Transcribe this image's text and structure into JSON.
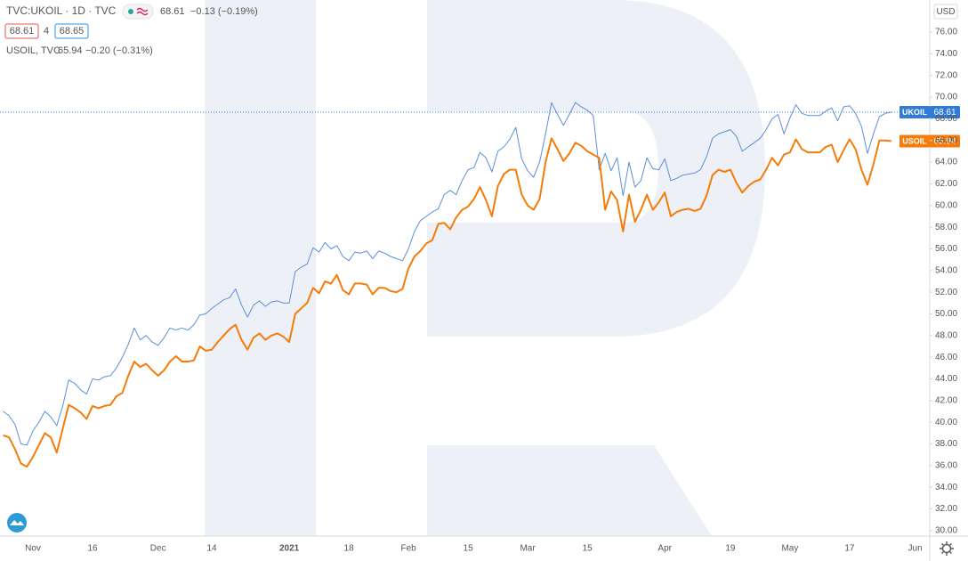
{
  "chart_data": {
    "type": "line",
    "title": "TVC:UKOIL · 1D · TVC",
    "title_change": "−0.13 (−0.19%)",
    "bid": "68.61",
    "spread": "4",
    "ask": "68.65",
    "compare_label": "USOIL, TVC",
    "compare_change": "−0.20 (−0.31%)",
    "currency": "USD",
    "grid": false,
    "categories": [
      null,
      null,
      null,
      null,
      null,
      "Nov",
      null,
      null,
      null,
      null,
      null,
      null,
      null,
      null,
      null,
      "16",
      null,
      null,
      null,
      null,
      null,
      null,
      null,
      null,
      null,
      null,
      "Dec",
      null,
      null,
      null,
      null,
      null,
      null,
      null,
      null,
      "14",
      null,
      null,
      null,
      null,
      null,
      null,
      null,
      null,
      null,
      null,
      null,
      null,
      "2021",
      null,
      null,
      null,
      null,
      null,
      null,
      null,
      null,
      null,
      "18",
      null,
      null,
      null,
      null,
      null,
      null,
      null,
      null,
      null,
      "Feb",
      null,
      null,
      null,
      null,
      null,
      null,
      null,
      null,
      null,
      "15",
      null,
      null,
      null,
      null,
      null,
      null,
      null,
      null,
      null,
      "Mar",
      null,
      null,
      null,
      null,
      null,
      null,
      null,
      null,
      null,
      "15",
      null,
      null,
      null,
      null,
      null,
      null,
      null,
      null,
      null,
      null,
      null,
      null,
      "Apr",
      null,
      null,
      null,
      null,
      null,
      null,
      null,
      null,
      null,
      null,
      "19",
      null,
      null,
      null,
      null,
      null,
      null,
      null,
      null,
      null,
      "May",
      null,
      null,
      null,
      null,
      null,
      null,
      null,
      null,
      null,
      "17",
      null,
      null,
      null,
      null,
      null,
      null,
      null,
      null,
      null,
      null,
      "Jun"
    ],
    "series": [
      {
        "name": "UKOIL",
        "color": "#5b8fd8",
        "badge_color": "#2f7bd9",
        "values": [
          41.0,
          40.6,
          39.8,
          38.0,
          37.9,
          39.2,
          40.0,
          41.0,
          40.5,
          39.7,
          41.5,
          43.9,
          43.6,
          43.0,
          42.6,
          44.0,
          43.9,
          44.2,
          44.3,
          45.0,
          46.0,
          47.2,
          48.7,
          47.6,
          48.0,
          47.4,
          47.1,
          47.8,
          48.7,
          48.5,
          48.7,
          48.5,
          49.0,
          49.9,
          50.0,
          50.5,
          50.9,
          51.3,
          51.5,
          52.3,
          50.8,
          49.7,
          50.8,
          51.2,
          50.7,
          51.1,
          51.2,
          51.0,
          51.0,
          53.9,
          54.3,
          54.6,
          56.1,
          55.7,
          56.6,
          56.0,
          56.3,
          55.3,
          54.9,
          55.7,
          55.6,
          55.8,
          55.1,
          55.8,
          55.6,
          55.3,
          55.1,
          54.9,
          56.0,
          57.6,
          58.6,
          59.0,
          59.4,
          59.7,
          61.0,
          61.4,
          61.0,
          62.3,
          63.3,
          63.5,
          64.9,
          64.4,
          63.1,
          65.0,
          65.4,
          66.1,
          67.2,
          64.3,
          63.2,
          62.6,
          64.0,
          66.6,
          69.5,
          68.4,
          67.4,
          68.4,
          69.5,
          69.1,
          68.8,
          68.3,
          63.3,
          64.8,
          63.2,
          64.4,
          60.9,
          64.0,
          61.7,
          62.3,
          64.4,
          63.4,
          63.3,
          64.3,
          62.3,
          62.5,
          62.8,
          62.9,
          63.0,
          63.3,
          64.5,
          66.2,
          66.6,
          66.8,
          67.0,
          66.4,
          65.0,
          65.4,
          65.8,
          66.2,
          67.0,
          68.0,
          68.4,
          66.6,
          68.1,
          69.3,
          68.5,
          68.3,
          68.3,
          68.3,
          68.7,
          69.0,
          67.8,
          69.1,
          69.2,
          68.5,
          67.3,
          64.8,
          66.6,
          68.2,
          68.5,
          68.61,
          null,
          null,
          null,
          null
        ]
      },
      {
        "name": "USOIL",
        "color": "#f57c0a",
        "badge_color": "#f57c0a",
        "values": [
          38.8,
          38.6,
          37.5,
          36.2,
          35.9,
          36.8,
          37.9,
          39.0,
          38.6,
          37.2,
          39.4,
          41.6,
          41.3,
          40.9,
          40.3,
          41.5,
          41.3,
          41.5,
          41.6,
          42.4,
          42.7,
          44.3,
          45.6,
          45.1,
          45.4,
          44.8,
          44.3,
          44.8,
          45.6,
          46.1,
          45.6,
          45.6,
          45.7,
          47.0,
          46.6,
          46.7,
          47.4,
          48.0,
          48.6,
          49.0,
          47.6,
          46.7,
          47.8,
          48.2,
          47.6,
          48.0,
          48.2,
          47.9,
          47.4,
          50.0,
          50.5,
          51.0,
          52.4,
          51.9,
          53.0,
          52.8,
          53.6,
          52.2,
          51.8,
          52.8,
          52.8,
          52.7,
          51.8,
          52.4,
          52.4,
          52.1,
          52.0,
          52.3,
          54.2,
          55.3,
          55.8,
          56.5,
          56.8,
          58.3,
          58.4,
          57.8,
          58.9,
          59.6,
          59.9,
          60.6,
          61.7,
          60.5,
          59.0,
          61.8,
          62.9,
          63.3,
          63.3,
          61.0,
          60.0,
          59.6,
          60.6,
          64.0,
          66.2,
          65.2,
          64.1,
          64.8,
          65.8,
          65.5,
          65.0,
          64.7,
          64.4,
          59.6,
          61.3,
          60.5,
          57.6,
          61.0,
          58.5,
          59.6,
          61.0,
          59.6,
          60.3,
          61.2,
          59.0,
          59.4,
          59.6,
          59.7,
          59.5,
          59.7,
          60.9,
          62.8,
          63.3,
          63.1,
          63.3,
          62.1,
          61.2,
          61.8,
          62.2,
          62.4,
          63.3,
          64.4,
          63.7,
          64.7,
          64.9,
          66.1,
          65.2,
          64.9,
          64.9,
          64.9,
          65.4,
          65.6,
          64.0,
          65.1,
          66.1,
          65.2,
          63.3,
          61.9,
          63.8,
          66.0,
          66.0,
          65.94,
          null,
          null,
          null,
          null
        ]
      }
    ],
    "ylim": [
      29.5,
      78.96
    ],
    "yticks": [
      {
        "value": 30,
        "label": "30.00"
      },
      {
        "value": 32,
        "label": "32.00"
      },
      {
        "value": 34,
        "label": "34.00"
      },
      {
        "value": 36,
        "label": "36.00"
      },
      {
        "value": 38,
        "label": "38.00"
      },
      {
        "value": 40,
        "label": "40.00"
      },
      {
        "value": 42,
        "label": "42.00"
      },
      {
        "value": 44,
        "label": "44.00"
      },
      {
        "value": 46,
        "label": "46.00"
      },
      {
        "value": 48,
        "label": "48.00"
      },
      {
        "value": 50,
        "label": "50.00"
      },
      {
        "value": 52,
        "label": "52.00"
      },
      {
        "value": 54,
        "label": "54.00"
      },
      {
        "value": 56,
        "label": "56.00"
      },
      {
        "value": 58,
        "label": "58.00"
      },
      {
        "value": 60,
        "label": "60.00"
      },
      {
        "value": 62,
        "label": "62.00"
      },
      {
        "value": 64,
        "label": "64.00"
      },
      {
        "value": 66,
        "label": "66.00"
      },
      {
        "value": 68,
        "label": "68.00"
      },
      {
        "value": 70,
        "label": "70.00"
      },
      {
        "value": 72,
        "label": "72.00"
      },
      {
        "value": 74,
        "label": "74.00"
      },
      {
        "value": 76,
        "label": "76.00"
      }
    ]
  }
}
